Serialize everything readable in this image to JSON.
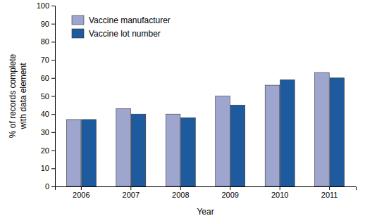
{
  "chart_data": {
    "type": "bar",
    "categories": [
      "2006",
      "2007",
      "2008",
      "2009",
      "2010",
      "2011"
    ],
    "series": [
      {
        "name": "Vaccine manufacturer",
        "color": "#9ea5cf",
        "values": [
          37,
          43,
          40,
          50,
          56,
          63
        ]
      },
      {
        "name": "Vaccine lot number",
        "color": "#1d5a9e",
        "values": [
          37,
          40,
          38,
          45,
          59,
          60
        ]
      }
    ],
    "xlabel": "Year",
    "ylabel": "% of records complete with data element",
    "ylim": [
      0,
      100
    ],
    "yticks": [
      0,
      10,
      20,
      30,
      40,
      50,
      60,
      70,
      80,
      90,
      100
    ],
    "legend": "upper left",
    "grid": false
  }
}
